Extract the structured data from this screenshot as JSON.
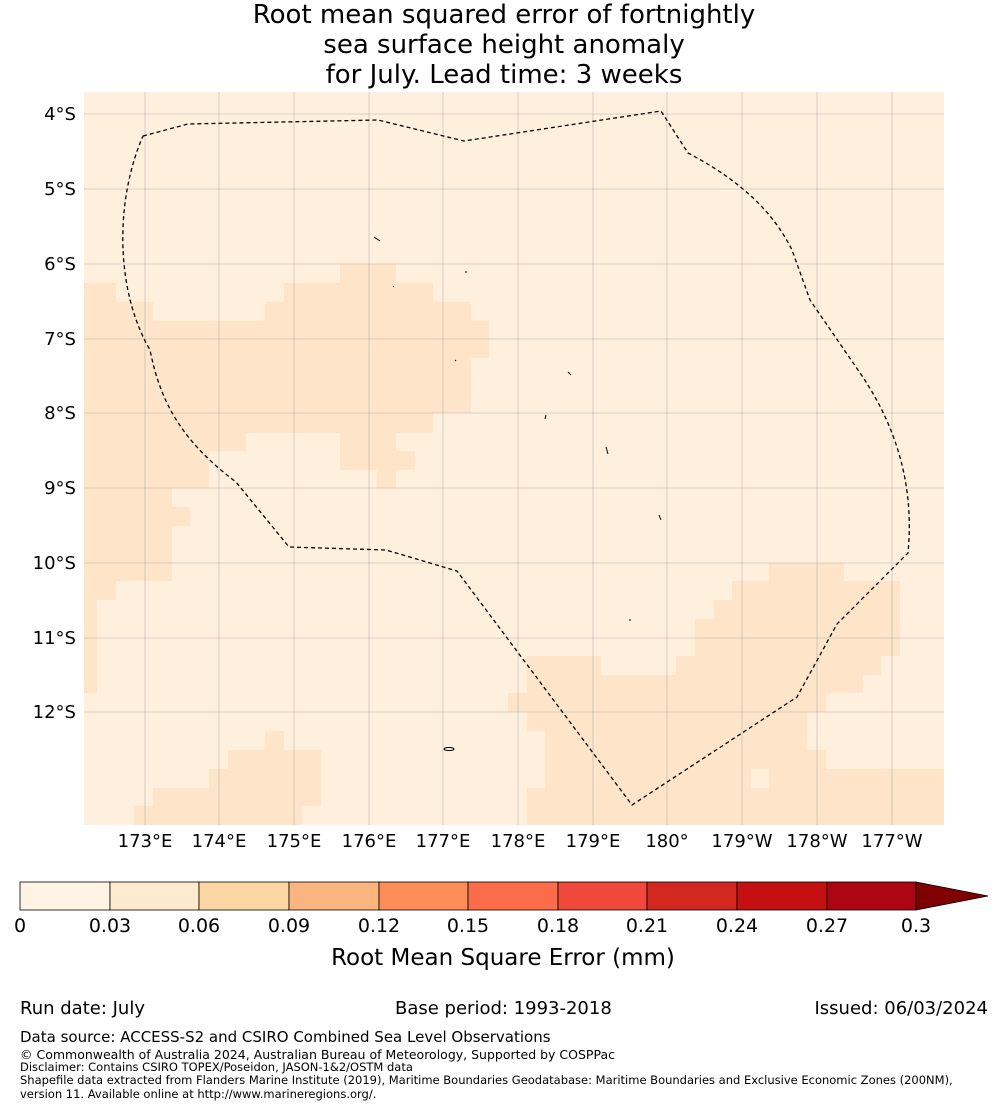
{
  "title_lines": [
    "Root mean squared error of fortnightly",
    "sea surface height anomaly",
    "for July. Lead time: 3 weeks"
  ],
  "map": {
    "lat_labels": [
      "4°S",
      "5°S",
      "6°S",
      "7°S",
      "8°S",
      "9°S",
      "10°S",
      "11°S",
      "12°S"
    ],
    "lon_labels": [
      "173°E",
      "174°E",
      "175°E",
      "176°E",
      "177°E",
      "178°E",
      "179°E",
      "180°",
      "179°W",
      "178°W",
      "177°W"
    ],
    "field_colors": {
      "low": "#fff0de",
      "mid": "#fee5c9"
    },
    "boundary_style": "dashed"
  },
  "colorbar": {
    "tick_labels": [
      "0",
      "0.03",
      "0.06",
      "0.09",
      "0.12",
      "0.15",
      "0.18",
      "0.21",
      "0.24",
      "0.27",
      "0.3"
    ],
    "colors": [
      "#fff3e3",
      "#feeacc",
      "#fdd7a3",
      "#fdb57f",
      "#fc8d59",
      "#fb6c4a",
      "#f0483a",
      "#d2281f",
      "#c41010",
      "#ab0612"
    ],
    "extend_color": "#7f0000",
    "label": "Root Mean Square Error (mm)"
  },
  "footer": {
    "run_date": "Run date: July",
    "base_period": "Base period: 1993-2018",
    "issued": "Issued: 06/03/2024",
    "data_source": "Data source: ACCESS-S2 and CSIRO Combined Sea Level Observations",
    "copyright": "© Commonwealth of Australia 2024, Australian Bureau of Meteorology, Supported by COSPPac",
    "disclaimer": "Disclaimer: Contains CSIRO TOPEX/Poseidon, JASON-1&2/OSTM data",
    "shapefile_line1": "Shapefile data extracted from Flanders Marine Institute (2019), Maritime Boundaries Geodatabase: Maritime Boundaries and Exclusive Economic Zones (200NM),",
    "shapefile_line2": "version 11. Available online at http://www.marineregions.org/."
  }
}
